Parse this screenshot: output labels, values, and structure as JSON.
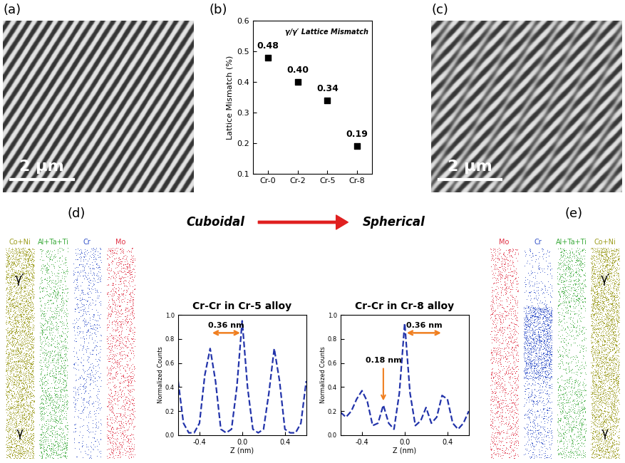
{
  "panel_labels": [
    "(a)",
    "(b)",
    "(c)",
    "(d)",
    "(e)"
  ],
  "micrographs": [
    {
      "scale_bar": "2 µm"
    },
    {
      "scale_bar": "2 µm"
    }
  ],
  "transition": {
    "from": "Cuboidal",
    "to": "Spherical"
  },
  "atom_maps": [
    {
      "columns": [
        "Co+Ni",
        "Al+Ta+Ti",
        "Cr",
        "Mo"
      ],
      "colors": [
        "#9c9c1c",
        "#3aaa3a",
        "#3050c8",
        "#e03044"
      ],
      "phases": [
        "γ′",
        "γ"
      ]
    },
    {
      "columns": [
        "Mo",
        "Cr",
        "Al+Ta+Ti",
        "Co+Ni"
      ],
      "colors": [
        "#e03044",
        "#3050c8",
        "#3aaa3a",
        "#9c9c1c"
      ],
      "phases": [
        "γ′",
        "γ"
      ]
    }
  ],
  "chart_data": [
    {
      "type": "scatter",
      "ylabel": "Lattice Mismatch (%)",
      "annotations": [
        "γ/γ′ Lattice Mismatch"
      ],
      "categories": [
        "Cr-0",
        "Cr-2",
        "Cr-5",
        "Cr-8"
      ],
      "values": [
        0.48,
        0.4,
        0.34,
        0.19
      ],
      "value_labels": [
        "0.48",
        "0.40",
        "0.34",
        "0.19"
      ],
      "data_labels": true,
      "color": "#000000",
      "marker": "square",
      "ylim": [
        0.1,
        0.6
      ],
      "yticks": [
        0.1,
        0.2,
        0.3,
        0.4,
        0.5,
        0.6
      ]
    },
    {
      "type": "line",
      "title": "Cr-Cr in Cr-5 alloy",
      "xlabel": "Z (nm)",
      "ylabel": "Normalized Counts",
      "x": [
        -0.6,
        -0.55,
        -0.5,
        -0.45,
        -0.4,
        -0.35,
        -0.3,
        -0.25,
        -0.2,
        -0.15,
        -0.1,
        -0.05,
        0.0,
        0.05,
        0.1,
        0.15,
        0.2,
        0.25,
        0.3,
        0.35,
        0.4,
        0.45,
        0.5,
        0.55,
        0.6
      ],
      "values": [
        0.45,
        0.1,
        0.02,
        0.02,
        0.1,
        0.5,
        0.72,
        0.45,
        0.05,
        0.02,
        0.05,
        0.4,
        0.95,
        0.4,
        0.05,
        0.02,
        0.05,
        0.35,
        0.72,
        0.45,
        0.05,
        0.02,
        0.02,
        0.1,
        0.45
      ],
      "color": "#2233aa",
      "line_style": "dashed",
      "annotations": [
        {
          "text": "0.36 nm",
          "x": [
            -0.3,
            0.0
          ],
          "y": 0.85
        }
      ],
      "xlim": [
        -0.6,
        0.6
      ],
      "xticks": [
        -0.4,
        0.0,
        0.4
      ],
      "ylim": [
        0.0,
        1.0
      ],
      "yticks": [
        0.0,
        0.2,
        0.4,
        0.6,
        0.8,
        1.0
      ]
    },
    {
      "type": "line",
      "title": "Cr-Cr in Cr-8 alloy",
      "xlabel": "Z (nm)",
      "ylabel": "Normalized Counts",
      "x": [
        -0.6,
        -0.55,
        -0.5,
        -0.45,
        -0.4,
        -0.35,
        -0.3,
        -0.25,
        -0.2,
        -0.15,
        -0.1,
        -0.05,
        0.0,
        0.05,
        0.1,
        0.15,
        0.2,
        0.25,
        0.3,
        0.35,
        0.4,
        0.45,
        0.5,
        0.55,
        0.6
      ],
      "values": [
        0.19,
        0.15,
        0.2,
        0.3,
        0.37,
        0.28,
        0.08,
        0.1,
        0.25,
        0.1,
        0.05,
        0.35,
        0.93,
        0.35,
        0.08,
        0.12,
        0.23,
        0.1,
        0.15,
        0.33,
        0.3,
        0.1,
        0.05,
        0.1,
        0.2
      ],
      "color": "#2233aa",
      "line_style": "dashed",
      "annotations": [
        {
          "text": "0.36 nm",
          "x": [
            0.0,
            0.36
          ],
          "y": 0.85
        },
        {
          "text": "0.18 nm",
          "x": -0.2,
          "y": 0.27
        }
      ],
      "xlim": [
        -0.6,
        0.6
      ],
      "xticks": [
        -0.4,
        0.0,
        0.4
      ],
      "ylim": [
        0.0,
        1.0
      ],
      "yticks": [
        0.0,
        0.2,
        0.4,
        0.6,
        0.8,
        1.0
      ]
    }
  ]
}
